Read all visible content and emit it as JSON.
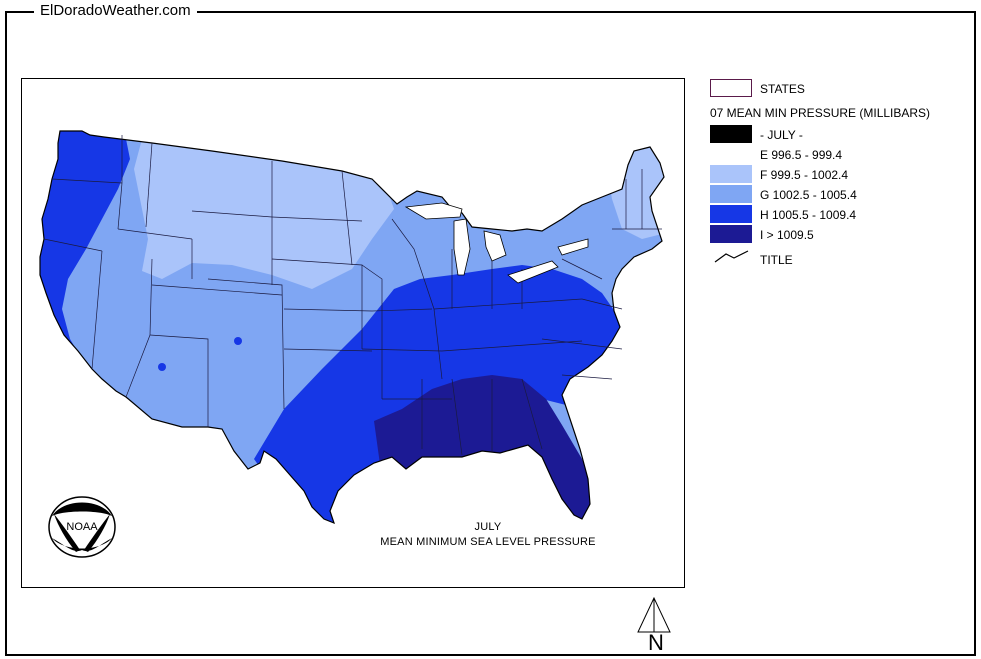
{
  "site_title": "ElDoradoWeather.com",
  "map": {
    "caption_month": "JULY",
    "caption_title": "MEAN MINIMUM SEA LEVEL PRESSURE",
    "logo_text": "NOAA"
  },
  "legend": {
    "states_label": "STATES",
    "heading": "07 MEAN MIN PRESSURE (MILLIBARS)",
    "items": [
      {
        "label": "- JULY -",
        "color": "#000000"
      },
      {
        "label": "E 996.5 - 999.4",
        "color": "#ffffff"
      },
      {
        "label": "F 999.5 - 1002.4",
        "color": "#aac4fa"
      },
      {
        "label": "G 1002.5 - 1005.4",
        "color": "#7fa6f3"
      },
      {
        "label": "H 1005.5 - 1009.4",
        "color": "#1637e6"
      },
      {
        "label": "I > 1009.5",
        "color": "#1c1a94"
      }
    ],
    "title_label": "TITLE"
  },
  "north_label": "N"
}
